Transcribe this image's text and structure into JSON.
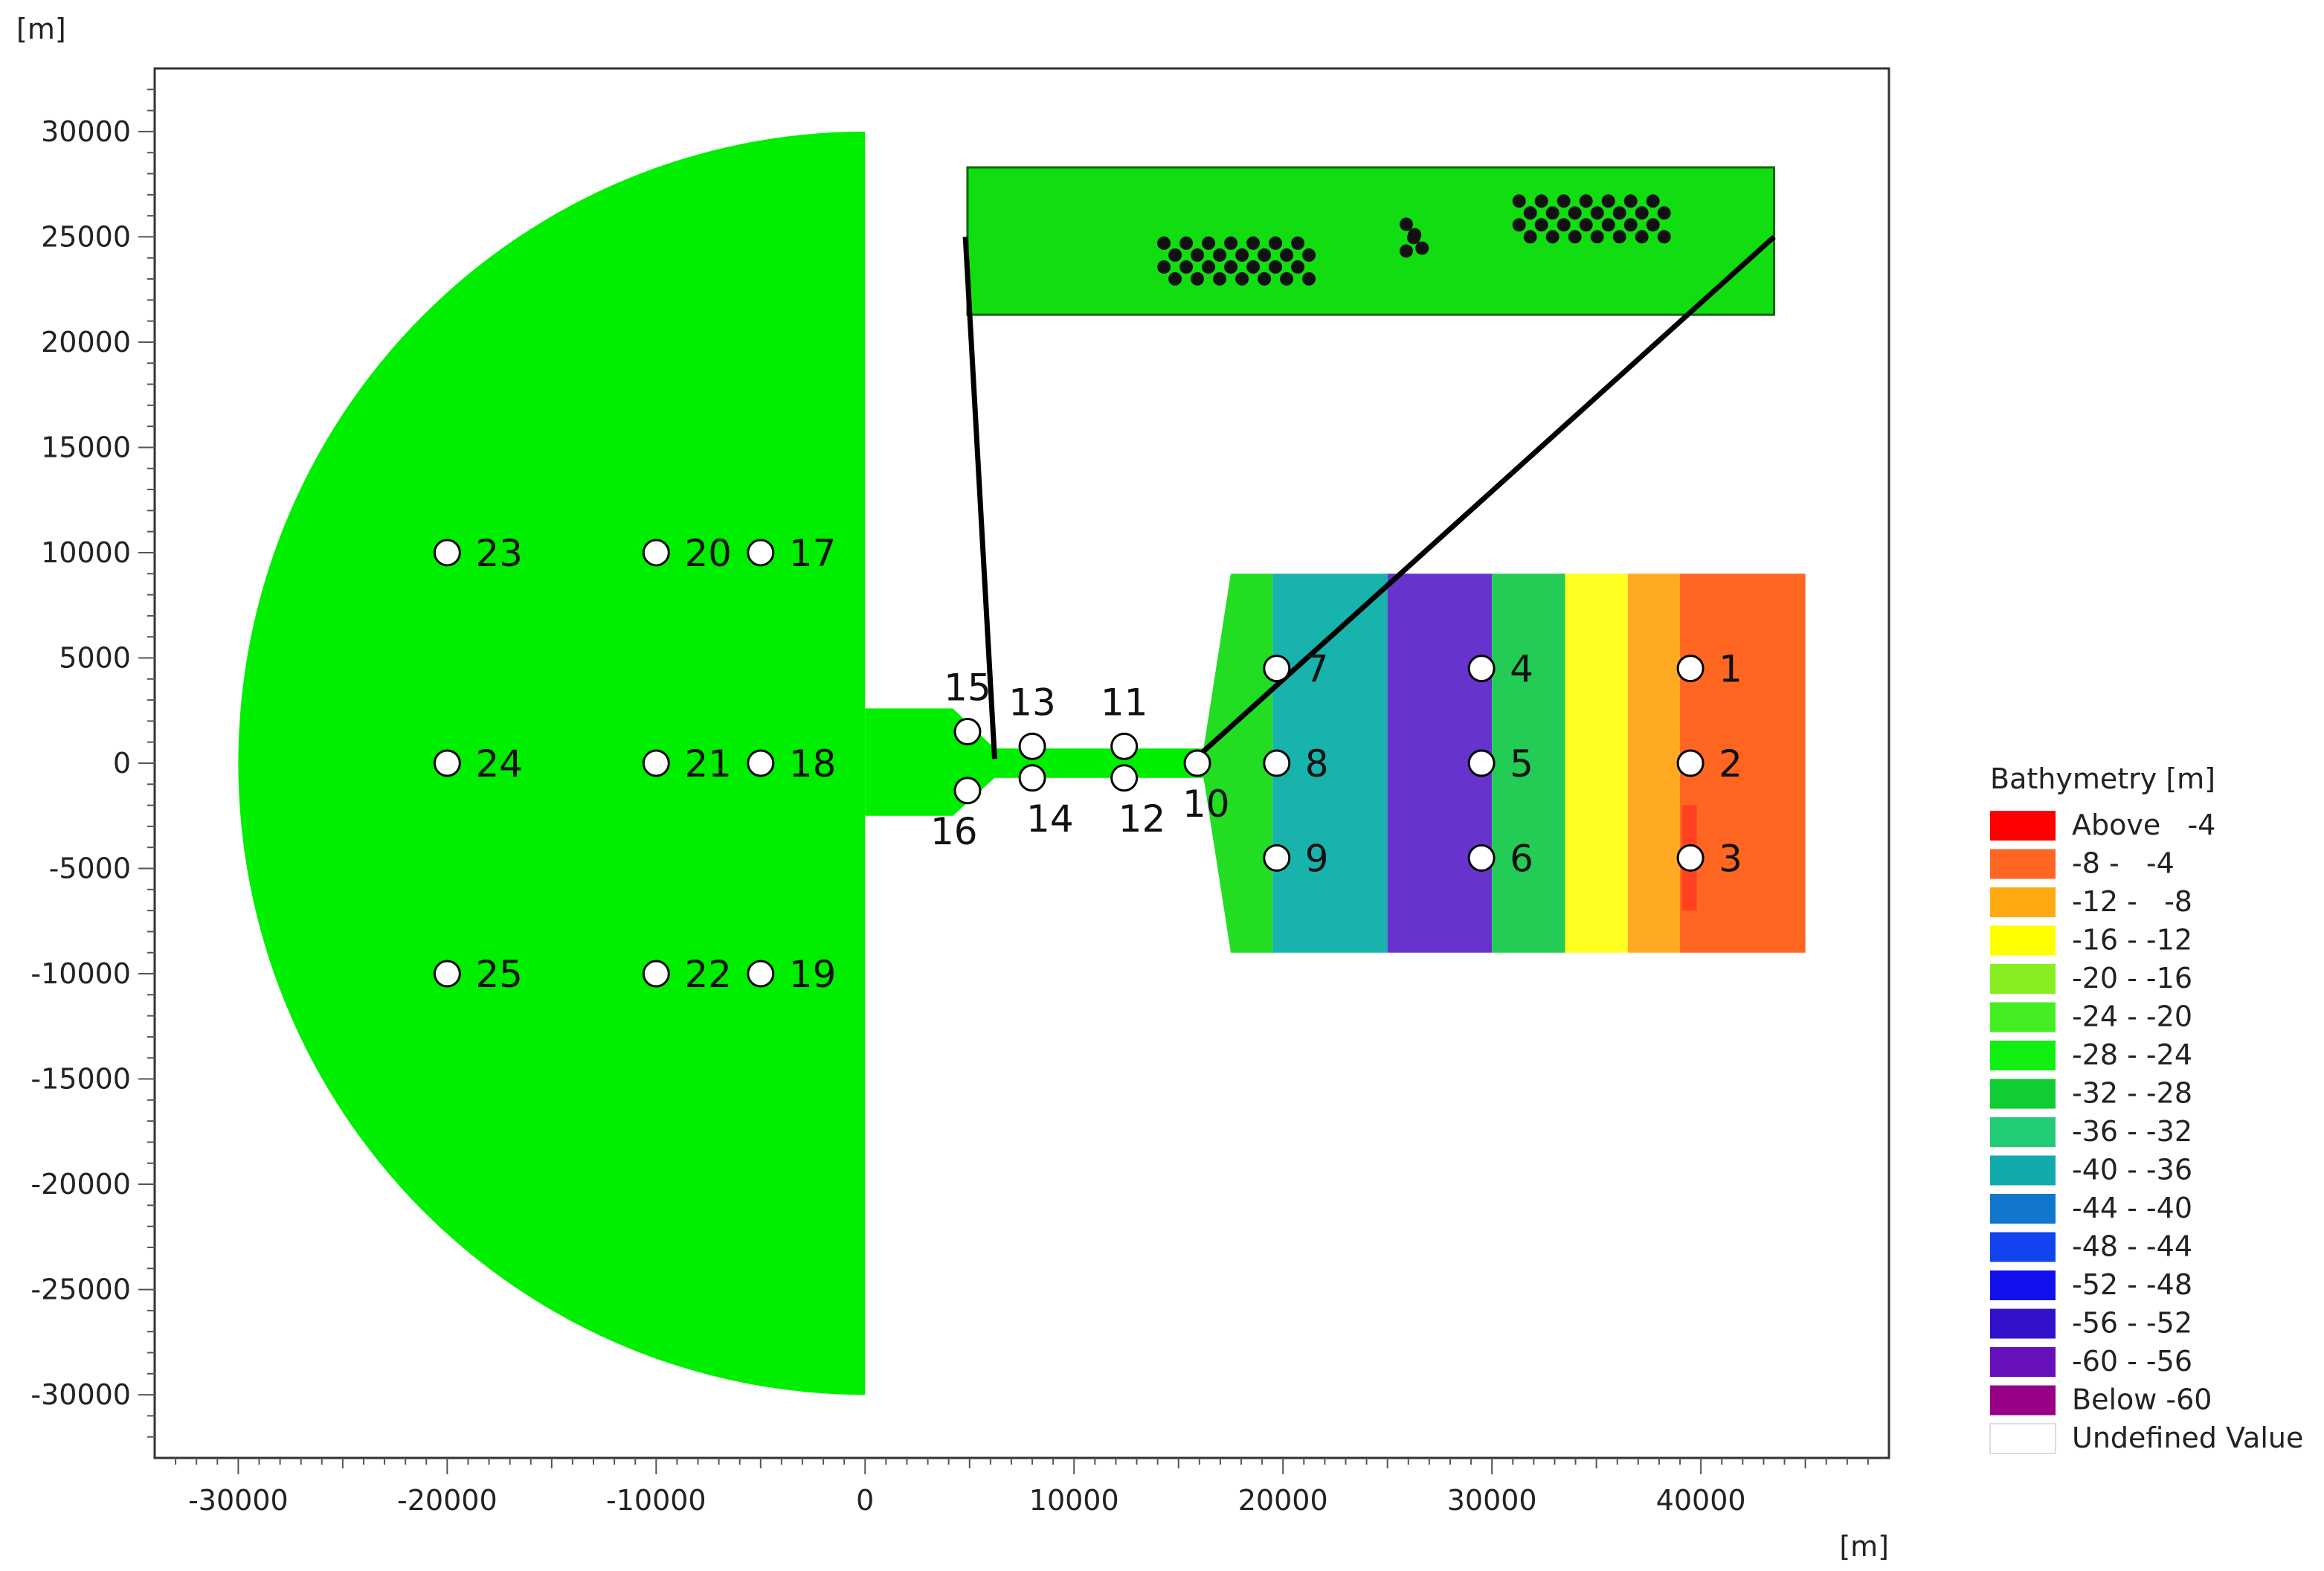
{
  "chart_data": {
    "type": "map",
    "x_unit": "[m]",
    "y_unit": "[m]",
    "xlim": [
      -34000,
      49000
    ],
    "ylim": [
      -33000,
      33000
    ],
    "x_ticks": [
      -30000,
      -20000,
      -10000,
      0,
      10000,
      20000,
      30000,
      40000
    ],
    "y_ticks": [
      30000,
      25000,
      20000,
      15000,
      10000,
      5000,
      0,
      -5000,
      -10000,
      -15000,
      -20000,
      -25000,
      -30000
    ],
    "domain_color": "#00ee00",
    "bathymetry_bands": [
      {
        "x": [
          17500,
          19500
        ],
        "color": "#22dd22"
      },
      {
        "x": [
          19500,
          25000
        ],
        "color": "#17b3ac"
      },
      {
        "x": [
          25000,
          30000
        ],
        "color": "#6633cc"
      },
      {
        "x": [
          30000,
          33500
        ],
        "color": "#22cc55"
      },
      {
        "x": [
          33500,
          36500
        ],
        "color": "#ffff22"
      },
      {
        "x": [
          36500,
          39000
        ],
        "color": "#ffaa22"
      },
      {
        "x": [
          39000,
          45000
        ],
        "color": "#ff6622"
      }
    ],
    "stations": [
      {
        "label": "1",
        "x": 39500,
        "y": 4500
      },
      {
        "label": "2",
        "x": 39500,
        "y": 0
      },
      {
        "label": "3",
        "x": 39500,
        "y": -4500
      },
      {
        "label": "4",
        "x": 29500,
        "y": 4500
      },
      {
        "label": "5",
        "x": 29500,
        "y": 0
      },
      {
        "label": "6",
        "x": 29500,
        "y": -4500
      },
      {
        "label": "7",
        "x": 19700,
        "y": 4500
      },
      {
        "label": "8",
        "x": 19700,
        "y": 0
      },
      {
        "label": "9",
        "x": 19700,
        "y": -4500
      },
      {
        "label": "10",
        "x": 15900,
        "y": 0
      },
      {
        "label": "11",
        "x": 12400,
        "y": 800
      },
      {
        "label": "12",
        "x": 12400,
        "y": -700
      },
      {
        "label": "13",
        "x": 8000,
        "y": 800
      },
      {
        "label": "14",
        "x": 8000,
        "y": -700
      },
      {
        "label": "15",
        "x": 4900,
        "y": 1500
      },
      {
        "label": "16",
        "x": 4900,
        "y": -1300
      },
      {
        "label": "17",
        "x": -5000,
        "y": 10000
      },
      {
        "label": "18",
        "x": -5000,
        "y": 0
      },
      {
        "label": "19",
        "x": -5000,
        "y": -10000
      },
      {
        "label": "20",
        "x": -10000,
        "y": 10000
      },
      {
        "label": "21",
        "x": -10000,
        "y": 0
      },
      {
        "label": "22",
        "x": -10000,
        "y": -10000
      },
      {
        "label": "23",
        "x": -20000,
        "y": 10000
      },
      {
        "label": "24",
        "x": -20000,
        "y": 0
      },
      {
        "label": "25",
        "x": -20000,
        "y": -10000
      }
    ],
    "legend": {
      "title": "Bathymetry [m]",
      "entries": [
        {
          "label": "Above   -4",
          "color": "#ff0000"
        },
        {
          "label": "-8 -   -4",
          "color": "#ff6622"
        },
        {
          "label": "-12 -   -8",
          "color": "#ffaa11"
        },
        {
          "label": "-16 - -12",
          "color": "#ffff00"
        },
        {
          "label": "-20 - -16",
          "color": "#88ee22"
        },
        {
          "label": "-24 - -20",
          "color": "#44ee22"
        },
        {
          "label": "-28 - -24",
          "color": "#11ee11"
        },
        {
          "label": "-32 - -28",
          "color": "#11cc33"
        },
        {
          "label": "-36 - -32",
          "color": "#22cc77"
        },
        {
          "label": "-40 - -36",
          "color": "#11aaaa"
        },
        {
          "label": "-44 - -40",
          "color": "#1177cc"
        },
        {
          "label": "-48 - -44",
          "color": "#1144ee"
        },
        {
          "label": "-52 - -48",
          "color": "#1111ee"
        },
        {
          "label": "-56 - -52",
          "color": "#3311cc"
        },
        {
          "label": "-60 - -56",
          "color": "#6611bb"
        },
        {
          "label": "Below -60",
          "color": "#990088"
        },
        {
          "label": "Undefined Value",
          "color": "#ffffff"
        }
      ]
    }
  }
}
